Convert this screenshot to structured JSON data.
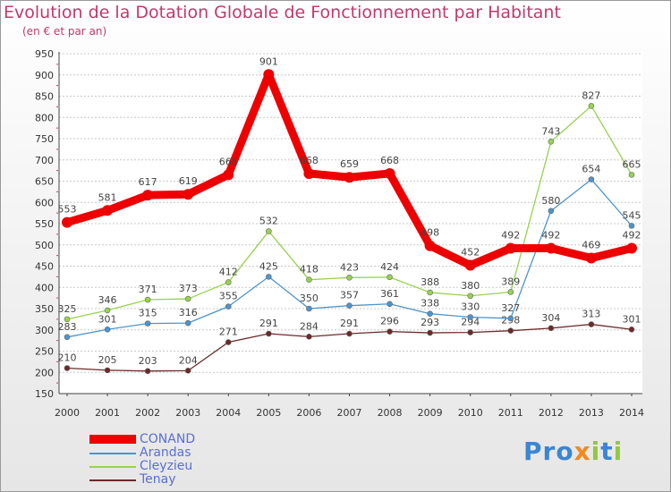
{
  "title": "Evolution de la Dotation Globale de Fonctionnement par Habitant",
  "subtitle": "(en € et par an)",
  "logo": "Proxiti",
  "chart_data": {
    "type": "line",
    "x": [
      "2000",
      "2001",
      "2002",
      "2003",
      "2004",
      "2005",
      "2006",
      "2007",
      "2008",
      "2009",
      "2010",
      "2011",
      "2012",
      "2013",
      "2014"
    ],
    "ylim": [
      150,
      950
    ],
    "yticks": [
      150,
      200,
      250,
      300,
      350,
      400,
      450,
      500,
      550,
      600,
      650,
      700,
      750,
      800,
      850,
      900,
      950
    ],
    "grid": "horizontal",
    "legend_position": "bottom-left",
    "series": [
      {
        "name": "CONAND",
        "color": "#ee0000",
        "values": [
          553,
          581,
          617,
          619,
          665,
          901,
          668,
          659,
          668,
          498,
          452,
          492,
          492,
          469,
          492
        ],
        "labels": [
          "553",
          "581",
          "617",
          "619",
          "665",
          "901",
          "668",
          "659",
          "668",
          "498",
          "452",
          "492",
          "492",
          "469",
          "492"
        ]
      },
      {
        "name": "Arandas",
        "color": "#4d94cc",
        "values": [
          283,
          301,
          315,
          316,
          355,
          425,
          350,
          357,
          361,
          338,
          330,
          327,
          580,
          654,
          545
        ],
        "labels": [
          "283",
          "301",
          "315",
          "316",
          "355",
          "425",
          "350",
          "357",
          "361",
          "338",
          "330",
          "327",
          "580",
          "654",
          "545"
        ]
      },
      {
        "name": "Cleyzieu",
        "color": "#96d34f",
        "values": [
          325,
          346,
          371,
          373,
          412,
          532,
          418,
          423,
          424,
          388,
          380,
          389,
          743,
          827,
          665
        ],
        "labels": [
          "325",
          "346",
          "371",
          "373",
          "412",
          "532",
          "418",
          "423",
          "424",
          "388",
          "380",
          "389",
          "743",
          "827",
          "665"
        ]
      },
      {
        "name": "Tenay",
        "color": "#6b2a2a",
        "values": [
          210,
          205,
          203,
          204,
          271,
          291,
          284,
          291,
          296,
          293,
          294,
          298,
          304,
          313,
          301
        ],
        "labels": [
          "210",
          "205",
          "203",
          "204",
          "271",
          "291",
          "284",
          "291",
          "296",
          "293",
          "294",
          "298",
          "304",
          "313",
          "301"
        ]
      }
    ]
  }
}
